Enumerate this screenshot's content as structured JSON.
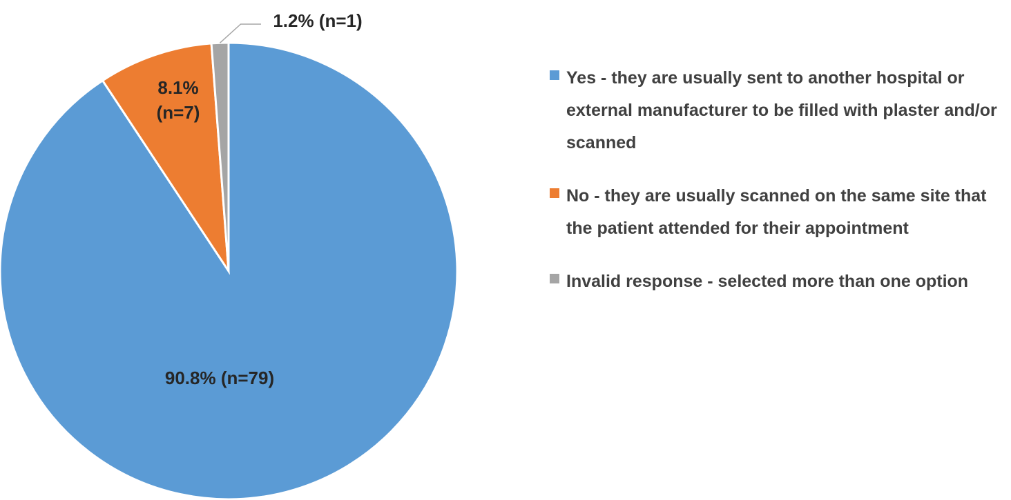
{
  "chart_data": {
    "type": "pie",
    "categories": [
      "Yes - they are usually sent to another hospital or external manufacturer to be filled with plaster and/or scanned",
      "No - they are usually scanned on the same site that the patient attended for their appointment",
      "Invalid response - selected more than one option"
    ],
    "values": [
      90.8,
      8.1,
      1.2
    ],
    "value_labels": [
      "90.8% (n=79)",
      "8.1% (n=7)",
      "1.2% (n=1)"
    ],
    "colors": [
      "#5b9bd5",
      "#ed7d31",
      "#a5a5a5"
    ],
    "legend": "right"
  }
}
